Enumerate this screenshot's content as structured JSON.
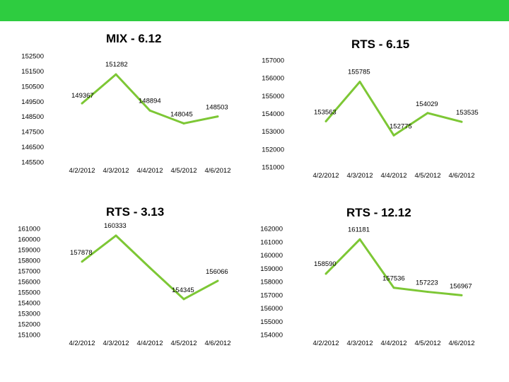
{
  "header_bar_color": "#2ecc40",
  "line_color": "#7dc735",
  "chart_data": [
    {
      "type": "line",
      "title": "MIX - 6.12",
      "categories": [
        "4/2/2012",
        "4/3/2012",
        "4/4/2012",
        "4/5/2012",
        "4/6/2012"
      ],
      "series": [
        {
          "values": [
            149367,
            151282,
            148894,
            148045,
            148503
          ]
        }
      ],
      "data_labels": [
        "149367",
        "151282",
        "148894",
        "148045",
        "148503"
      ],
      "yticks": [
        "152500",
        "151500",
        "150500",
        "149500",
        "148500",
        "147500",
        "146500",
        "145500"
      ],
      "ylim": [
        145500,
        152500
      ],
      "grid": false
    },
    {
      "type": "line",
      "title": "RTS - 6.15",
      "categories": [
        "4/2/2012",
        "4/3/2012",
        "4/4/2012",
        "4/5/2012",
        "4/6/2012"
      ],
      "series": [
        {
          "values": [
            153563,
            155785,
            152775,
            154029,
            153535
          ]
        }
      ],
      "data_labels": [
        "153563",
        "155785",
        "152775",
        "154029",
        "153535"
      ],
      "yticks": [
        "157000",
        "156000",
        "155000",
        "154000",
        "153000",
        "152000",
        "151000"
      ],
      "ylim": [
        151000,
        157000
      ],
      "grid": false
    },
    {
      "type": "line",
      "title": "RTS - 3.13",
      "categories": [
        "4/2/2012",
        "4/3/2012",
        "4/4/2012",
        "4/5/2012",
        "4/6/2012"
      ],
      "series": [
        {
          "values": [
            157878,
            160333,
            157300,
            154345,
            156066
          ]
        }
      ],
      "data_labels": [
        "157878",
        "160333",
        "",
        "154345",
        "156066"
      ],
      "yticks": [
        "161000",
        "160000",
        "159000",
        "158000",
        "157000",
        "156000",
        "155000",
        "154000",
        "153000",
        "152000",
        "151000"
      ],
      "ylim": [
        151000,
        161000
      ],
      "grid": false
    },
    {
      "type": "line",
      "title": "RTS - 12.12",
      "categories": [
        "4/2/2012",
        "4/3/2012",
        "4/4/2012",
        "4/5/2012",
        "4/6/2012"
      ],
      "series": [
        {
          "values": [
            158590,
            161181,
            157536,
            157223,
            156967
          ]
        }
      ],
      "data_labels": [
        "158590",
        "161181",
        "157536",
        "157223",
        "156967"
      ],
      "yticks": [
        "162000",
        "161000",
        "160000",
        "159000",
        "158000",
        "157000",
        "156000",
        "155000",
        "154000"
      ],
      "ylim": [
        154000,
        162000
      ],
      "grid": false
    }
  ]
}
